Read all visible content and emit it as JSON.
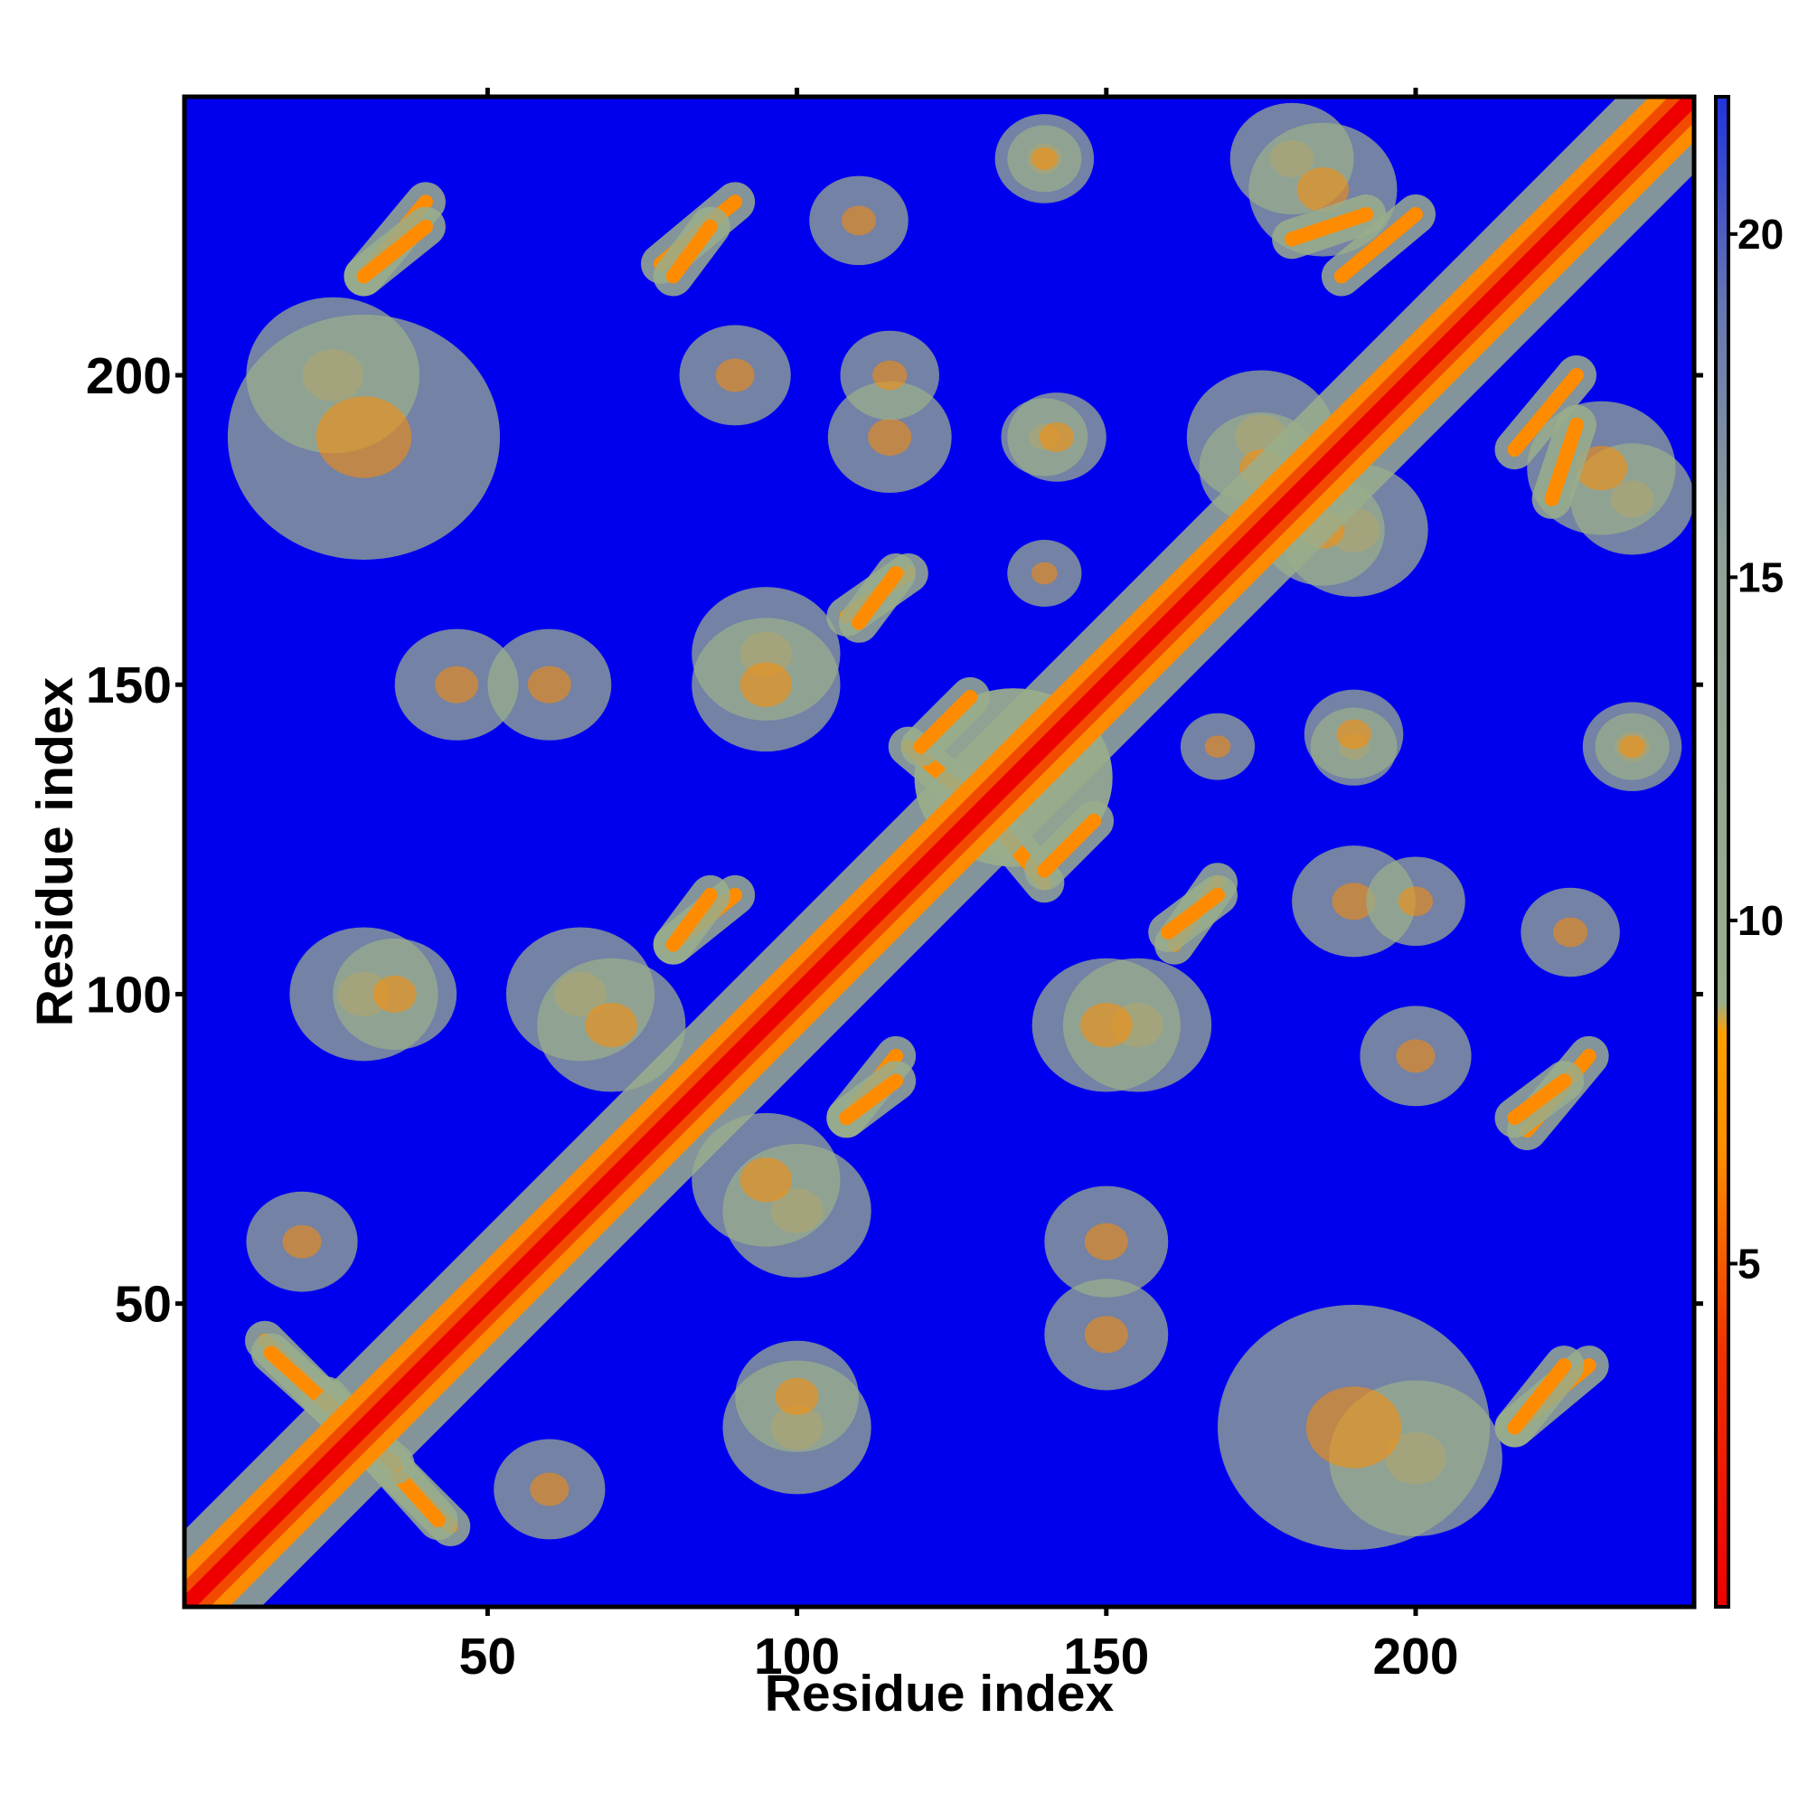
{
  "chart_data": {
    "type": "heatmap",
    "title": "",
    "xlabel": "Residue index",
    "ylabel": "Residue index",
    "xlim": [
      1,
      245
    ],
    "ylim": [
      1,
      245
    ],
    "x_ticks": [
      50,
      100,
      150,
      200
    ],
    "y_ticks": [
      50,
      100,
      150,
      200
    ],
    "colorbar": {
      "ticks": [
        5,
        10,
        15,
        20
      ],
      "range": [
        0,
        22
      ],
      "colors": {
        "low": "#ee0000",
        "mid": "#ff8c00",
        "band": "#9aae8c",
        "high": "#6677b0",
        "background": "#0000ee"
      }
    },
    "description_values": {
      "diagonal_distance": 1,
      "near_diagonal_distance": 5,
      "contact_cutoff_distance": 15,
      "background_distance": 21
    },
    "contact_segments": [
      {
        "x": [
          14,
          35
        ],
        "y": [
          44,
          23
        ],
        "value": 6
      },
      {
        "x": [
          24,
          42
        ],
        "y": [
          35,
          15
        ],
        "value": 7
      },
      {
        "x": [
          30,
          40
        ],
        "y": [
          216,
          228
        ],
        "value": 6
      },
      {
        "x": [
          78,
          90
        ],
        "y": [
          218,
          228
        ],
        "value": 7
      },
      {
        "x": [
          80,
          90
        ],
        "y": [
          108,
          116
        ],
        "value": 7
      },
      {
        "x": [
          108,
          118
        ],
        "y": [
          161,
          168
        ],
        "value": 7
      },
      {
        "x": [
          108,
          116
        ],
        "y": [
          80,
          86
        ],
        "value": 7
      },
      {
        "x": [
          160,
          168
        ],
        "y": [
          110,
          116
        ],
        "value": 7
      },
      {
        "x": [
          216,
          224
        ],
        "y": [
          30,
          40
        ],
        "value": 6
      },
      {
        "x": [
          216,
          224
        ],
        "y": [
          80,
          86
        ],
        "value": 7
      },
      {
        "x": [
          222,
          226
        ],
        "y": [
          180,
          192
        ],
        "value": 7
      },
      {
        "x": [
          188,
          200
        ],
        "y": [
          216,
          226
        ],
        "value": 8
      },
      {
        "x": [
          130,
          140
        ],
        "y": [
          130,
          118
        ],
        "value": 8
      },
      {
        "x": [
          120,
          128
        ],
        "y": [
          140,
          148
        ],
        "value": 8
      }
    ],
    "contact_patches": [
      {
        "x": 25,
        "y": 200,
        "r": 14,
        "value": 11
      },
      {
        "x": 45,
        "y": 150,
        "r": 10,
        "value": 12
      },
      {
        "x": 65,
        "y": 100,
        "r": 12,
        "value": 10
      },
      {
        "x": 95,
        "y": 155,
        "r": 12,
        "value": 11
      },
      {
        "x": 140,
        "y": 190,
        "r": 7,
        "value": 10
      },
      {
        "x": 140,
        "y": 168,
        "r": 6,
        "value": 11
      },
      {
        "x": 150,
        "y": 95,
        "r": 12,
        "value": 11
      },
      {
        "x": 150,
        "y": 60,
        "r": 10,
        "value": 11
      },
      {
        "x": 175,
        "y": 190,
        "r": 12,
        "value": 10
      },
      {
        "x": 185,
        "y": 175,
        "r": 10,
        "value": 10
      },
      {
        "x": 190,
        "y": 30,
        "r": 22,
        "value": 12
      },
      {
        "x": 190,
        "y": 115,
        "r": 10,
        "value": 11
      },
      {
        "x": 190,
        "y": 142,
        "r": 8,
        "value": 10
      },
      {
        "x": 95,
        "y": 70,
        "r": 12,
        "value": 10
      },
      {
        "x": 30,
        "y": 100,
        "r": 12,
        "value": 11
      },
      {
        "x": 100,
        "y": 35,
        "r": 10,
        "value": 12
      },
      {
        "x": 135,
        "y": 135,
        "r": 16,
        "value": 10
      },
      {
        "x": 235,
        "y": 180,
        "r": 10,
        "value": 11
      },
      {
        "x": 235,
        "y": 140,
        "r": 8,
        "value": 12
      },
      {
        "x": 225,
        "y": 110,
        "r": 8,
        "value": 12
      },
      {
        "x": 20,
        "y": 60,
        "r": 9,
        "value": 12
      },
      {
        "x": 140,
        "y": 235,
        "r": 6,
        "value": 12
      },
      {
        "x": 185,
        "y": 230,
        "r": 12,
        "value": 11
      },
      {
        "x": 115,
        "y": 200,
        "r": 8,
        "value": 11
      },
      {
        "x": 90,
        "y": 200,
        "r": 9,
        "value": 11
      }
    ]
  }
}
